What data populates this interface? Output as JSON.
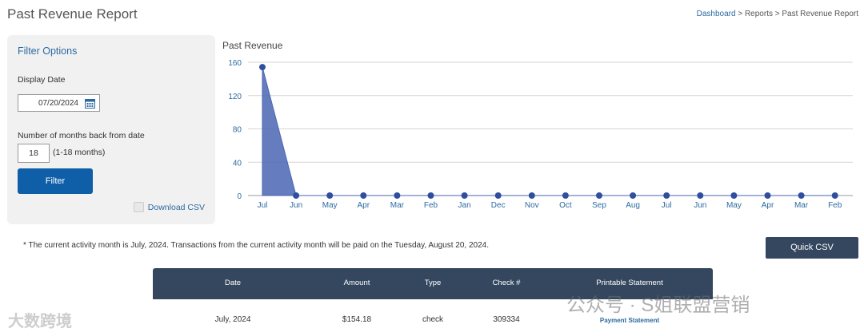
{
  "header": {
    "title": "Past Revenue Report",
    "breadcrumb": {
      "home": "Dashboard",
      "sep1": " > ",
      "section": "Reports",
      "sep2": " > ",
      "current": "Past Revenue Report"
    }
  },
  "filter": {
    "title": "Filter Options",
    "display_date_label": "Display Date",
    "display_date_value": "07/20/2024",
    "months_label": "Number of months back from date",
    "months_value": "18",
    "months_hint": "(1-18 months)",
    "filter_button": "Filter",
    "download_csv_label": "Download CSV",
    "download_csv_checked": false
  },
  "chart_data": {
    "type": "area",
    "title": "Past Revenue",
    "xlabel": "",
    "ylabel": "",
    "categories": [
      "Jul",
      "Jun",
      "May",
      "Apr",
      "Mar",
      "Feb",
      "Jan",
      "Dec",
      "Nov",
      "Oct",
      "Sep",
      "Aug",
      "Jul",
      "Jun",
      "May",
      "Apr",
      "Mar",
      "Feb"
    ],
    "values": [
      154.18,
      0,
      0,
      0,
      0,
      0,
      0,
      0,
      0,
      0,
      0,
      0,
      0,
      0,
      0,
      0,
      0,
      0
    ],
    "ylim": [
      0,
      160
    ],
    "yticks": [
      0,
      40,
      80,
      120,
      160
    ],
    "grid": true,
    "color": "#4a65b3"
  },
  "note": "* The current activity month is July, 2024. Transactions from the current activity month will be paid on the Tuesday, August 20, 2024.",
  "quick_csv_button": "Quick CSV",
  "table": {
    "headers": [
      "Date",
      "Amount",
      "Type",
      "Check #",
      "Printable Statement"
    ],
    "rows": [
      {
        "date": "July, 2024",
        "amount": "$154.18",
        "type": "check",
        "check": "309334",
        "statement": "Payment Statement"
      }
    ]
  },
  "watermarks": {
    "left": "大数跨境",
    "right": "公众号 · S姐联盟营销"
  }
}
